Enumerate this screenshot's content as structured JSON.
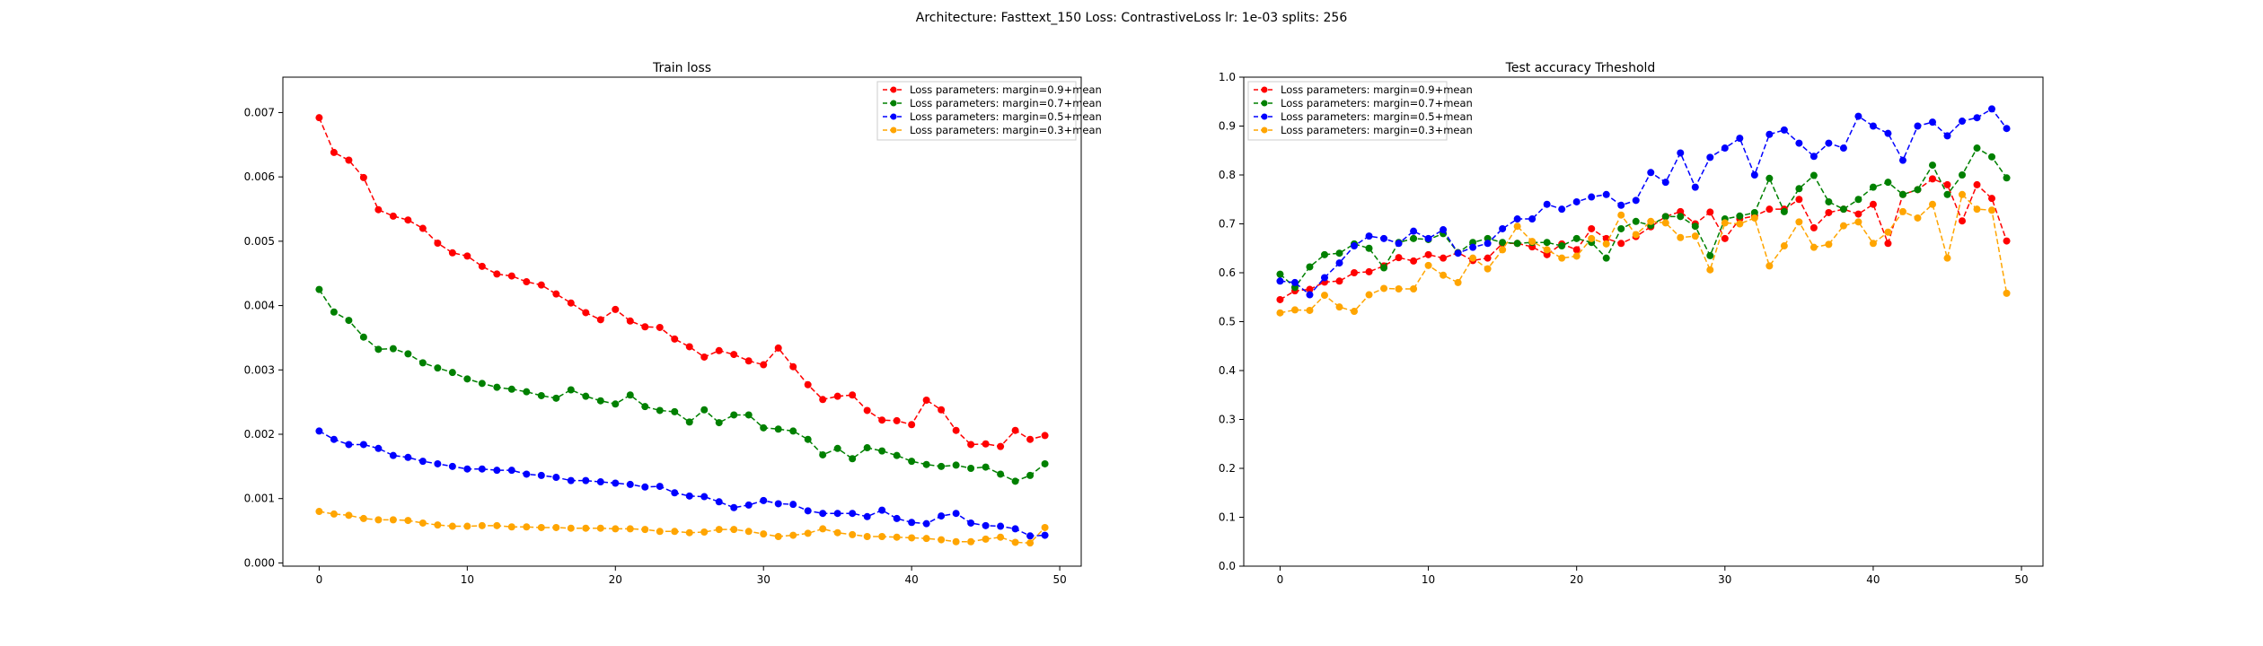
{
  "figure": {
    "suptitle": "Architecture: Fasttext_150 Loss: ContrastiveLoss lr: 1e-03 splits: 256"
  },
  "legend": {
    "labels": [
      "Loss parameters: margin=0.9+mean",
      "Loss parameters: margin=0.7+mean",
      "Loss parameters: margin=0.5+mean",
      "Loss parameters: margin=0.3+mean"
    ]
  },
  "chart_data": [
    {
      "type": "line",
      "title": "Train loss",
      "xlabel": "",
      "ylabel": "",
      "xlim": [
        -2.45,
        51.45
      ],
      "ylim": [
        -5e-05,
        0.00755
      ],
      "xticks": [
        0,
        10,
        20,
        30,
        40,
        50
      ],
      "xtick_labels": [
        "0",
        "10",
        "20",
        "30",
        "40",
        "50"
      ],
      "yticks": [
        0,
        0.001,
        0.002,
        0.003,
        0.004,
        0.005,
        0.006,
        0.007
      ],
      "ytick_labels": [
        "0.000",
        "0.001",
        "0.002",
        "0.003",
        "0.004",
        "0.005",
        "0.006",
        "0.007"
      ],
      "legend_position": "upper right",
      "grid": false,
      "series": [
        {
          "name": "Loss parameters: margin=0.9+mean",
          "color": "#ff0000",
          "values": [
            0.00692,
            0.00638,
            0.00626,
            0.00599,
            0.00549,
            0.00539,
            0.00533,
            0.0052,
            0.00497,
            0.00482,
            0.00477,
            0.00461,
            0.00449,
            0.00446,
            0.00437,
            0.00432,
            0.00418,
            0.00404,
            0.00389,
            0.00378,
            0.00394,
            0.00376,
            0.00367,
            0.00366,
            0.00348,
            0.00336,
            0.0032,
            0.0033,
            0.00324,
            0.00314,
            0.00308,
            0.00334,
            0.00305,
            0.00277,
            0.00254,
            0.00259,
            0.00261,
            0.00237,
            0.00222,
            0.00221,
            0.00215,
            0.00253,
            0.00238,
            0.00206,
            0.00184,
            0.00185,
            0.00181,
            0.00206,
            0.00192,
            0.00198
          ]
        },
        {
          "name": "Loss parameters: margin=0.7+mean",
          "color": "#008000",
          "values": [
            0.00425,
            0.0039,
            0.00377,
            0.00351,
            0.00332,
            0.00333,
            0.00325,
            0.00311,
            0.00303,
            0.00296,
            0.00286,
            0.00279,
            0.00273,
            0.0027,
            0.00266,
            0.0026,
            0.00256,
            0.00269,
            0.00259,
            0.00252,
            0.00247,
            0.00261,
            0.00243,
            0.00237,
            0.00235,
            0.00219,
            0.00238,
            0.00218,
            0.0023,
            0.0023,
            0.0021,
            0.00208,
            0.00205,
            0.00192,
            0.00168,
            0.00178,
            0.00162,
            0.00179,
            0.00174,
            0.00167,
            0.00158,
            0.00153,
            0.0015,
            0.00152,
            0.00147,
            0.00149,
            0.00138,
            0.00127,
            0.00136,
            0.00154
          ]
        },
        {
          "name": "Loss parameters: margin=0.5+mean",
          "color": "#0000ff",
          "values": [
            0.00205,
            0.00192,
            0.00184,
            0.00184,
            0.00178,
            0.00167,
            0.00164,
            0.00158,
            0.00154,
            0.0015,
            0.00146,
            0.00146,
            0.00144,
            0.00144,
            0.00138,
            0.00136,
            0.00133,
            0.00128,
            0.00128,
            0.00126,
            0.00124,
            0.00122,
            0.00118,
            0.00119,
            0.00109,
            0.00104,
            0.00103,
            0.00095,
            0.00086,
            0.0009,
            0.00097,
            0.00092,
            0.00091,
            0.00081,
            0.00077,
            0.00077,
            0.00077,
            0.00072,
            0.00082,
            0.00069,
            0.00063,
            0.00061,
            0.00073,
            0.00077,
            0.00062,
            0.00058,
            0.00057,
            0.00053,
            0.00042,
            0.00043
          ]
        },
        {
          "name": "Loss parameters: margin=0.3+mean",
          "color": "#ffa500",
          "values": [
            0.0008,
            0.00076,
            0.00074,
            0.00069,
            0.00067,
            0.00067,
            0.00066,
            0.00062,
            0.00059,
            0.00057,
            0.00057,
            0.00058,
            0.00058,
            0.00056,
            0.00056,
            0.00055,
            0.00055,
            0.00054,
            0.00054,
            0.00054,
            0.00053,
            0.00053,
            0.00052,
            0.00049,
            0.00049,
            0.00047,
            0.00048,
            0.00052,
            0.00052,
            0.00049,
            0.00045,
            0.00041,
            0.00043,
            0.00046,
            0.00053,
            0.00047,
            0.00044,
            0.00041,
            0.00041,
            0.0004,
            0.00039,
            0.00038,
            0.00036,
            0.00033,
            0.00033,
            0.00037,
            0.0004,
            0.00032,
            0.00031,
            0.00055
          ]
        }
      ]
    },
    {
      "type": "line",
      "title": "Test accuracy Trheshold",
      "xlabel": "",
      "ylabel": "",
      "xlim": [
        -2.45,
        51.45
      ],
      "ylim": [
        0.0,
        1.0
      ],
      "xticks": [
        0,
        10,
        20,
        30,
        40,
        50
      ],
      "xtick_labels": [
        "0",
        "10",
        "20",
        "30",
        "40",
        "50"
      ],
      "yticks": [
        0.0,
        0.1,
        0.2,
        0.3,
        0.4,
        0.5,
        0.6,
        0.7,
        0.8,
        0.9,
        1.0
      ],
      "ytick_labels": [
        "0.0",
        "0.1",
        "0.2",
        "0.3",
        "0.4",
        "0.5",
        "0.6",
        "0.7",
        "0.8",
        "0.9",
        "1.0"
      ],
      "legend_position": "upper left",
      "grid": false,
      "series": [
        {
          "name": "Loss parameters: margin=0.9+mean",
          "color": "#ff0000",
          "values": [
            0.545,
            0.563,
            0.566,
            0.581,
            0.583,
            0.6,
            0.602,
            0.614,
            0.631,
            0.624,
            0.637,
            0.63,
            0.641,
            0.625,
            0.63,
            0.66,
            0.66,
            0.653,
            0.637,
            0.659,
            0.647,
            0.69,
            0.67,
            0.66,
            0.674,
            0.694,
            0.715,
            0.725,
            0.7,
            0.724,
            0.67,
            0.71,
            0.716,
            0.73,
            0.73,
            0.75,
            0.692,
            0.723,
            0.73,
            0.72,
            0.74,
            0.66,
            0.76,
            0.77,
            0.792,
            0.78,
            0.706,
            0.78,
            0.752,
            0.665
          ]
        },
        {
          "name": "Loss parameters: margin=0.7+mean",
          "color": "#008000",
          "values": [
            0.597,
            0.57,
            0.612,
            0.637,
            0.64,
            0.659,
            0.65,
            0.61,
            0.662,
            0.67,
            0.668,
            0.68,
            0.641,
            0.662,
            0.67,
            0.662,
            0.66,
            0.662,
            0.662,
            0.655,
            0.67,
            0.662,
            0.63,
            0.69,
            0.705,
            0.697,
            0.715,
            0.715,
            0.695,
            0.635,
            0.71,
            0.716,
            0.723,
            0.793,
            0.725,
            0.772,
            0.799,
            0.745,
            0.73,
            0.75,
            0.775,
            0.785,
            0.76,
            0.77,
            0.82,
            0.76,
            0.8,
            0.855,
            0.837,
            0.794
          ]
        },
        {
          "name": "Loss parameters: margin=0.5+mean",
          "color": "#0000ff",
          "values": [
            0.583,
            0.58,
            0.555,
            0.59,
            0.62,
            0.655,
            0.675,
            0.67,
            0.66,
            0.685,
            0.67,
            0.688,
            0.64,
            0.652,
            0.66,
            0.69,
            0.71,
            0.71,
            0.74,
            0.73,
            0.745,
            0.755,
            0.76,
            0.738,
            0.748,
            0.805,
            0.785,
            0.845,
            0.775,
            0.836,
            0.855,
            0.875,
            0.8,
            0.883,
            0.892,
            0.865,
            0.838,
            0.865,
            0.855,
            0.92,
            0.9,
            0.885,
            0.83,
            0.9,
            0.908,
            0.88,
            0.91,
            0.917,
            0.935,
            0.895
          ]
        },
        {
          "name": "Loss parameters: margin=0.3+mean",
          "color": "#ffa500",
          "values": [
            0.518,
            0.524,
            0.523,
            0.554,
            0.53,
            0.521,
            0.555,
            0.568,
            0.567,
            0.567,
            0.615,
            0.595,
            0.58,
            0.63,
            0.608,
            0.647,
            0.695,
            0.664,
            0.647,
            0.63,
            0.634,
            0.67,
            0.659,
            0.718,
            0.678,
            0.705,
            0.702,
            0.672,
            0.675,
            0.606,
            0.702,
            0.7,
            0.712,
            0.614,
            0.655,
            0.704,
            0.652,
            0.658,
            0.696,
            0.704,
            0.66,
            0.683,
            0.725,
            0.712,
            0.74,
            0.63,
            0.76,
            0.73,
            0.728,
            0.558
          ]
        }
      ]
    }
  ]
}
